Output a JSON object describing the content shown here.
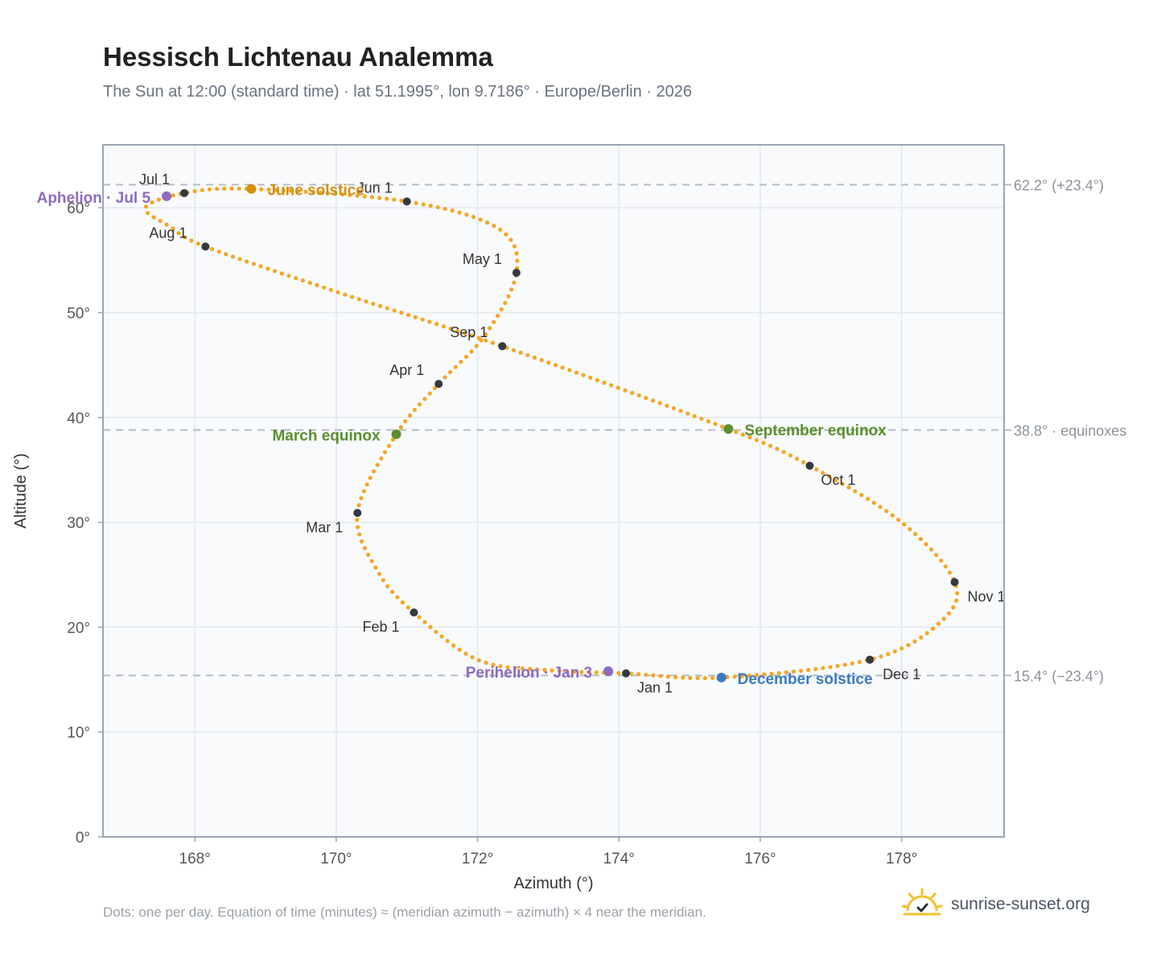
{
  "header": {
    "title": "Hessisch Lichtenau Analemma",
    "subtitle": "The Sun at 12:00 (standard time) · lat 51.1995°, lon 9.7186° · Europe/Berlin · 2026"
  },
  "footer": {
    "note": "Dots: one per day. Equation of time (minutes) ≈ (meridian azimuth − azimuth) × 4 near the meridian.",
    "brand": "sunrise-sunset.org"
  },
  "colors": {
    "path": "#f5a623",
    "month_marker": "#333a40",
    "solstice_june": "#d4900e",
    "solstice_december": "#3a7bbf",
    "equinox": "#5a8f2e",
    "apsis": "#8e6bbf",
    "reference_line": "#b7bcc4",
    "plot_bg": "#f8fafc",
    "frame": "#9aa5b4"
  },
  "chart_data": {
    "type": "scatter",
    "xlabel": "Azimuth (°)",
    "ylabel": "Altitude (°)",
    "xlim": [
      166.7,
      179.45
    ],
    "ylim": [
      0,
      66
    ],
    "xticks": [
      168,
      170,
      172,
      174,
      176,
      178
    ],
    "xtick_labels": [
      "168°",
      "170°",
      "172°",
      "174°",
      "176°",
      "178°"
    ],
    "yticks": [
      0,
      10,
      20,
      30,
      40,
      50,
      60
    ],
    "ytick_labels": [
      "0°",
      "10°",
      "20°",
      "30°",
      "40°",
      "50°",
      "60°"
    ],
    "grid": true,
    "path_anchors": [
      {
        "x": 174.1,
        "y": 15.6
      },
      {
        "x": 173.0,
        "y": 15.9
      },
      {
        "x": 172.0,
        "y": 16.9
      },
      {
        "x": 171.1,
        "y": 21.4
      },
      {
        "x": 170.6,
        "y": 25.2
      },
      {
        "x": 170.3,
        "y": 30.9
      },
      {
        "x": 170.85,
        "y": 38.4
      },
      {
        "x": 171.45,
        "y": 43.2
      },
      {
        "x": 172.1,
        "y": 47.8
      },
      {
        "x": 172.55,
        "y": 53.8
      },
      {
        "x": 172.3,
        "y": 58.0
      },
      {
        "x": 171.0,
        "y": 60.6
      },
      {
        "x": 168.8,
        "y": 61.8
      },
      {
        "x": 167.85,
        "y": 61.4
      },
      {
        "x": 167.3,
        "y": 60.0
      },
      {
        "x": 167.65,
        "y": 58.2
      },
      {
        "x": 168.15,
        "y": 56.3
      },
      {
        "x": 170.0,
        "y": 52.0
      },
      {
        "x": 172.35,
        "y": 46.8
      },
      {
        "x": 175.55,
        "y": 38.9
      },
      {
        "x": 176.7,
        "y": 35.4
      },
      {
        "x": 178.0,
        "y": 30.0
      },
      {
        "x": 178.75,
        "y": 24.3
      },
      {
        "x": 178.55,
        "y": 20.5
      },
      {
        "x": 177.55,
        "y": 16.9
      },
      {
        "x": 175.45,
        "y": 15.2
      },
      {
        "x": 174.1,
        "y": 15.6
      }
    ],
    "month_markers": [
      {
        "label": "Jan 1",
        "x": 174.1,
        "y": 15.6
      },
      {
        "label": "Feb 1",
        "x": 171.1,
        "y": 21.4
      },
      {
        "label": "Mar 1",
        "x": 170.3,
        "y": 30.9
      },
      {
        "label": "Apr 1",
        "x": 171.45,
        "y": 43.2
      },
      {
        "label": "May 1",
        "x": 172.55,
        "y": 53.8
      },
      {
        "label": "Jun 1",
        "x": 171.0,
        "y": 60.6
      },
      {
        "label": "Jul 1",
        "x": 167.85,
        "y": 61.4
      },
      {
        "label": "Aug 1",
        "x": 168.15,
        "y": 56.3
      },
      {
        "label": "Sep 1",
        "x": 172.35,
        "y": 46.8
      },
      {
        "label": "Oct 1",
        "x": 176.7,
        "y": 35.4
      },
      {
        "label": "Nov 1",
        "x": 178.75,
        "y": 24.3
      },
      {
        "label": "Dec 1",
        "x": 177.55,
        "y": 16.9
      }
    ],
    "events": [
      {
        "label": "June solstice",
        "x": 168.8,
        "y": 61.8,
        "color_key": "solstice_june"
      },
      {
        "label": "December solstice",
        "x": 175.45,
        "y": 15.2,
        "color_key": "solstice_december"
      },
      {
        "label": "March equinox",
        "x": 170.85,
        "y": 38.4,
        "color_key": "equinox"
      },
      {
        "label": "September equinox",
        "x": 175.55,
        "y": 38.9,
        "color_key": "equinox"
      },
      {
        "label": "Aphelion · Jul 5",
        "x": 167.6,
        "y": 61.1,
        "color_key": "apsis"
      },
      {
        "label": "Perihelion · Jan 3",
        "x": 173.85,
        "y": 15.8,
        "color_key": "apsis"
      }
    ],
    "reference_lines": [
      {
        "y": 62.2,
        "label": "62.2° (+23.4°)"
      },
      {
        "y": 38.8,
        "label": "38.8° · equinoxes"
      },
      {
        "y": 15.4,
        "label": "15.4° (−23.4°)"
      }
    ]
  }
}
